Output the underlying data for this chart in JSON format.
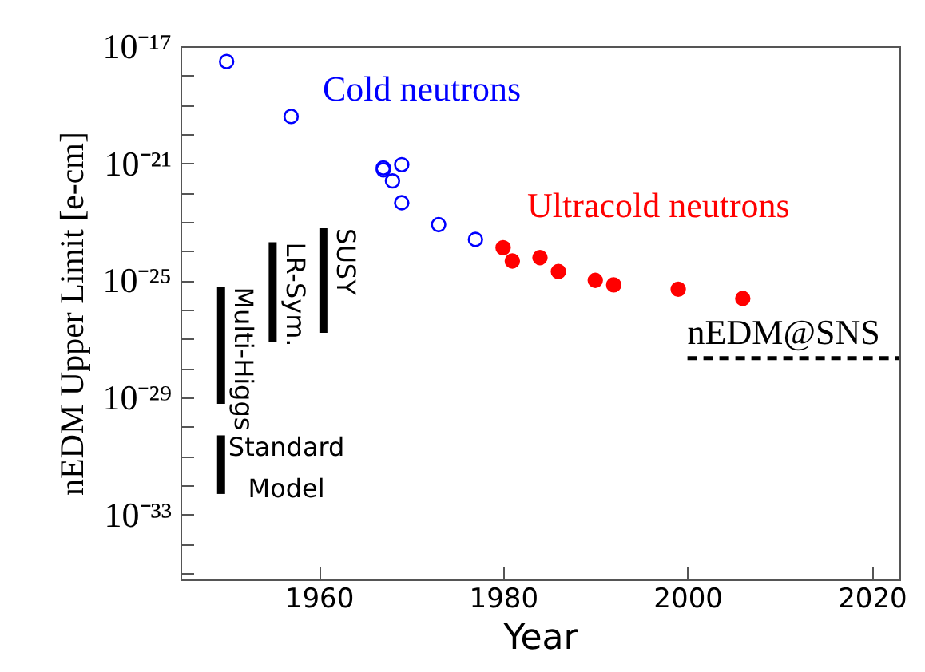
{
  "chart_data": {
    "type": "scatter",
    "xlabel": "Year",
    "ylabel": "nEDM Upper Limit [e-cm]",
    "log": "y",
    "grid": false,
    "xlim": [
      1945,
      2023
    ],
    "xticks": [
      1960,
      1980,
      2000,
      2020
    ],
    "ylim": [
      6e-36,
      1e-17
    ],
    "yticks": [
      {
        "value": 1e-17,
        "label": "10⁻¹⁷"
      },
      {
        "value": 1e-18,
        "label": null
      },
      {
        "value": 1e-19,
        "label": null
      },
      {
        "value": 1e-20,
        "label": null
      },
      {
        "value": 1e-21,
        "label": "10⁻²¹"
      },
      {
        "value": 1e-22,
        "label": null
      },
      {
        "value": 1e-23,
        "label": null
      },
      {
        "value": 1e-24,
        "label": null
      },
      {
        "value": 1e-25,
        "label": "10⁻²⁵"
      },
      {
        "value": 1e-26,
        "label": null
      },
      {
        "value": 1e-27,
        "label": null
      },
      {
        "value": 1e-28,
        "label": null
      },
      {
        "value": 1e-29,
        "label": "10⁻²⁹"
      },
      {
        "value": 1e-30,
        "label": null
      },
      {
        "value": 1e-31,
        "label": null
      },
      {
        "value": 1e-32,
        "label": null
      },
      {
        "value": 1e-33,
        "label": "10⁻³³"
      },
      {
        "value": 1e-34,
        "label": null
      },
      {
        "value": 1e-35,
        "label": null
      }
    ],
    "series": [
      {
        "name": "Cold neutrons",
        "marker": "circle",
        "color": "#0000ff",
        "x": [
          1950,
          1957,
          1967,
          1967,
          1969,
          1968,
          1969,
          1973,
          1977
        ],
        "values": [
          3e-18,
          4e-20,
          7e-22,
          6e-22,
          9e-22,
          2.5e-22,
          4.5e-23,
          8e-24,
          2.5e-24
        ]
      },
      {
        "name": "Ultracold neutrons",
        "marker": "circle",
        "color": "#ff0000",
        "x": [
          1980,
          1981,
          1984,
          1986,
          1990,
          1992,
          1999,
          2006
        ],
        "values": [
          1.3e-24,
          4.6e-25,
          6e-25,
          2e-25,
          1e-25,
          7e-26,
          5e-26,
          2.4e-26
        ]
      },
      {
        "name": "nEDM@SNS",
        "type": "line",
        "line_style": "dashed",
        "color": "#000000",
        "x": [
          2000,
          2023
        ],
        "values": [
          2.2e-28,
          2.2e-28
        ]
      },
      {
        "name": "Standard Model",
        "type": "bar",
        "color": "#000000",
        "x": [
          1949.4
        ],
        "base": [
          5e-33
        ],
        "values": [
          5e-31
        ]
      },
      {
        "name": "Multi-Higgs",
        "type": "bar",
        "color": "#000000",
        "x": [
          1949.4
        ],
        "base": [
          6e-30
        ],
        "values": [
          6e-26
        ]
      },
      {
        "name": "LR-Sym.",
        "type": "bar",
        "color": "#000000",
        "x": [
          1955
        ],
        "base": [
          8e-28
        ],
        "values": [
          2e-24
        ]
      },
      {
        "name": "SUSY",
        "type": "bar",
        "color": "#000000",
        "x": [
          1960.5
        ],
        "base": [
          1.6e-27
        ],
        "values": [
          6e-24
        ]
      }
    ]
  }
}
